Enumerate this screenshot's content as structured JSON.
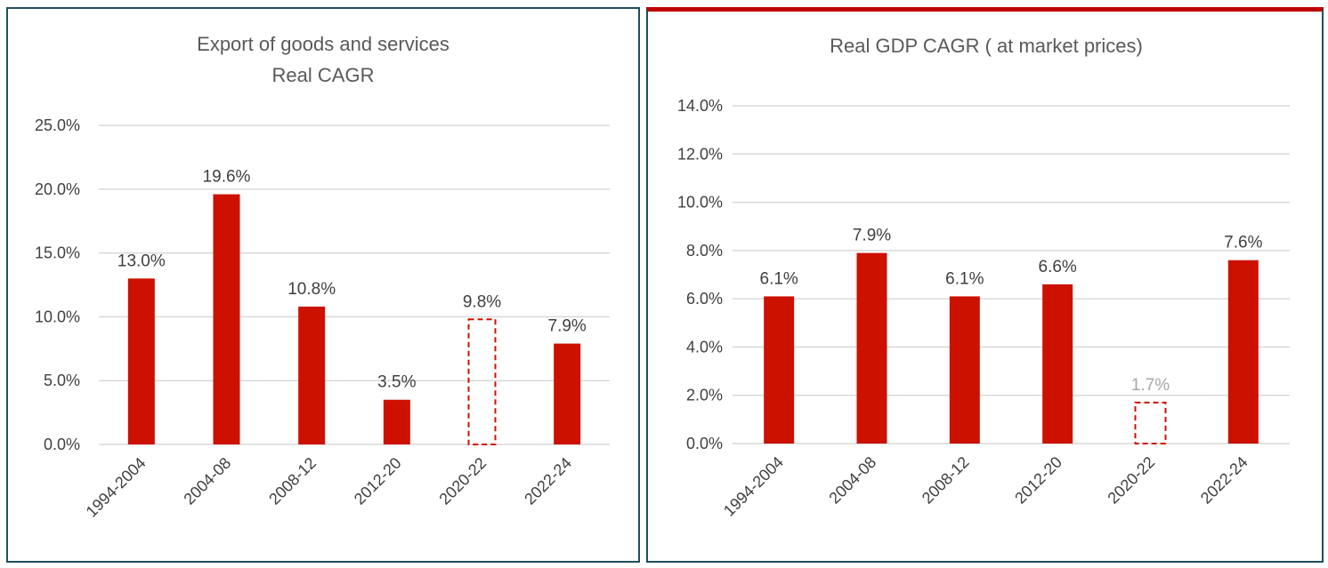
{
  "chart_data": [
    {
      "type": "bar",
      "title": [
        "Export of goods and services",
        "Real CAGR"
      ],
      "categories": [
        "1994-2004",
        "2004-08",
        "2008-12",
        "2012-20",
        "2020-22",
        "2022-24"
      ],
      "values": [
        13.0,
        19.6,
        10.8,
        3.5,
        9.8,
        7.9
      ],
      "value_labels": [
        "13.0%",
        "19.6%",
        "10.8%",
        "3.5%",
        "9.8%",
        "7.9%"
      ],
      "outlined_bars": [
        "2020-22"
      ],
      "ylim": [
        0,
        25
      ],
      "yticks": [
        0,
        5,
        10,
        15,
        20,
        25
      ],
      "ytick_labels": [
        "0.0%",
        "5.0%",
        "10.0%",
        "15.0%",
        "20.0%",
        "25.0%"
      ],
      "grid": true,
      "legend": "none",
      "xlabel": "",
      "ylabel": ""
    },
    {
      "type": "bar",
      "title": [
        "Real GDP CAGR ( at market prices)"
      ],
      "categories": [
        "1994-2004",
        "2004-08",
        "2008-12",
        "2012-20",
        "2020-22",
        "2022-24"
      ],
      "values": [
        6.1,
        7.9,
        6.1,
        6.6,
        1.7,
        7.6
      ],
      "value_labels": [
        "6.1%",
        "7.9%",
        "6.1%",
        "6.6%",
        "1.7%",
        "7.6%"
      ],
      "outlined_bars": [
        "2020-22"
      ],
      "ylim": [
        0,
        14
      ],
      "yticks": [
        0,
        2,
        4,
        6,
        8,
        10,
        12,
        14
      ],
      "ytick_labels": [
        "0.0%",
        "2.0%",
        "4.0%",
        "6.0%",
        "8.0%",
        "10.0%",
        "12.0%",
        "14.0%"
      ],
      "grid": true,
      "legend": "none",
      "xlabel": "",
      "ylabel": ""
    }
  ],
  "colors": {
    "bar": "#cc1100",
    "outline": "#cc1100",
    "muted_label": "#a6a6a6",
    "panel_border": "#1f4e5f",
    "accent_top": "#c00000"
  }
}
